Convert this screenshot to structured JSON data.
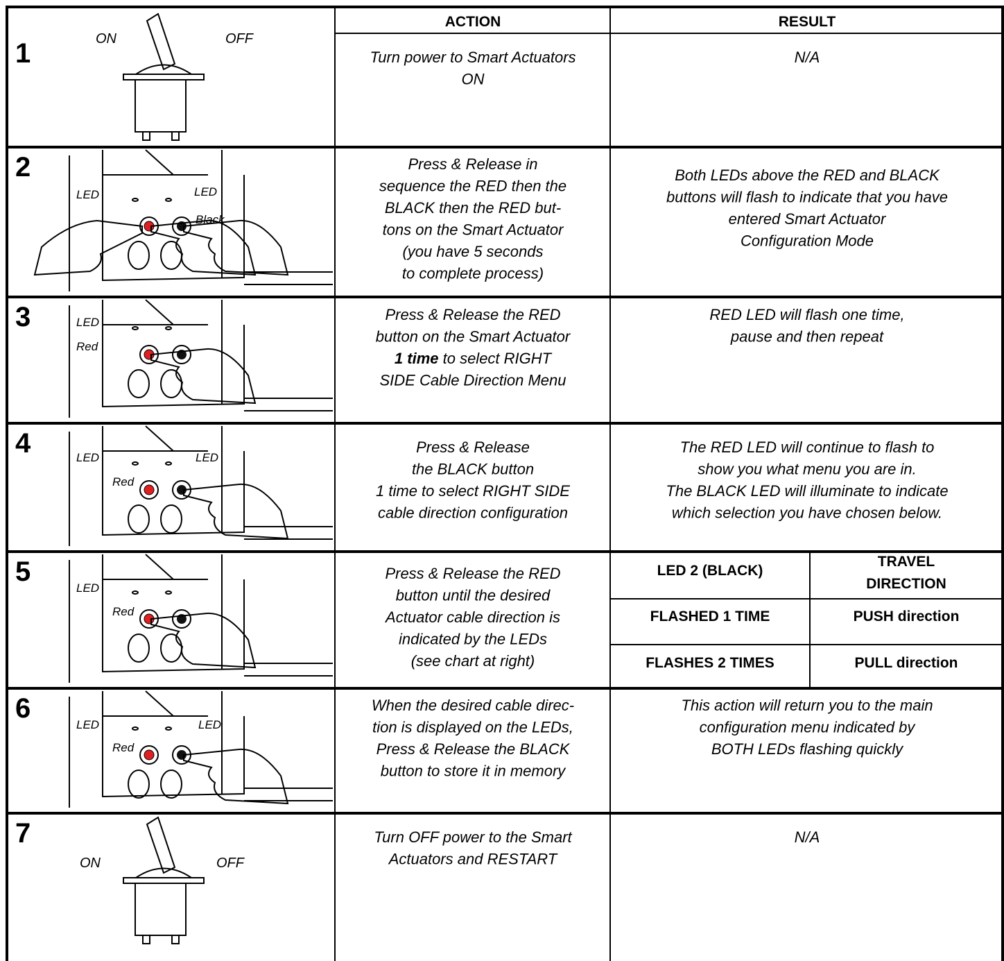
{
  "header": {
    "action": "ACTION",
    "result": "RESULT"
  },
  "steps": [
    {
      "number": "1",
      "labels": [
        "ON",
        "OFF"
      ],
      "action": [
        "Turn power to Smart Actuators",
        "ON"
      ],
      "result": [
        "N/A"
      ]
    },
    {
      "number": "2",
      "labels": [
        "LED",
        "LED",
        "Black"
      ],
      "action": [
        "Press & Release in",
        "sequence  the RED then the",
        "BLACK then the RED but-",
        "tons on the Smart Actuator",
        "(you have 5 seconds",
        "to complete process)"
      ],
      "result": [
        "Both LEDs above the RED and BLACK",
        "buttons will flash to indicate that you have",
        "entered Smart Actuator",
        "Configuration Mode"
      ]
    },
    {
      "number": "3",
      "labels": [
        "LED",
        "Red"
      ],
      "action": [
        "Press & Release the RED",
        "button on the Smart Actuator",
        {
          "emphasis": "1 time",
          "text": " to select RIGHT"
        },
        "SIDE Cable Direction Menu"
      ],
      "result": [
        "RED LED will flash one time,",
        "pause and then repeat"
      ]
    },
    {
      "number": "4",
      "labels": [
        "LED",
        "LED",
        "Red"
      ],
      "action": [
        "Press & Release",
        "the BLACK button",
        "1 time to select RIGHT SIDE",
        "cable direction configuration"
      ],
      "result": [
        "The RED LED will continue to flash to",
        "show you what menu you are in.",
        "The BLACK LED will illuminate to indicate",
        "which selection you have chosen below."
      ]
    },
    {
      "number": "5",
      "labels": [
        "LED",
        "Red"
      ],
      "action": [
        "Press & Release the RED",
        "button until the desired",
        "Actuator cable direction is",
        "indicated by the LEDs",
        "(see chart at right)"
      ],
      "result_table": {
        "header": [
          [
            "LED 2 (BLACK)"
          ],
          [
            "TRAVEL",
            "DIRECTION"
          ]
        ],
        "rows": [
          [
            "FLASHED 1 TIME",
            "PUSH direction"
          ],
          [
            "FLASHES 2 TIMES",
            "PULL direction"
          ]
        ]
      }
    },
    {
      "number": "6",
      "labels": [
        "LED",
        "LED",
        "Red"
      ],
      "action": [
        "When the desired cable direc-",
        "tion is displayed on the LEDs,",
        "Press & Release the BLACK",
        "button to store it in memory"
      ],
      "result": [
        "This action will return you to the main",
        "configuration menu indicated by",
        "BOTH LEDs flashing quickly"
      ]
    },
    {
      "number": "7",
      "labels": [
        "ON",
        "OFF"
      ],
      "action": [
        "Turn OFF power to the Smart",
        "Actuators and RESTART"
      ],
      "result": [
        "N/A"
      ]
    }
  ]
}
